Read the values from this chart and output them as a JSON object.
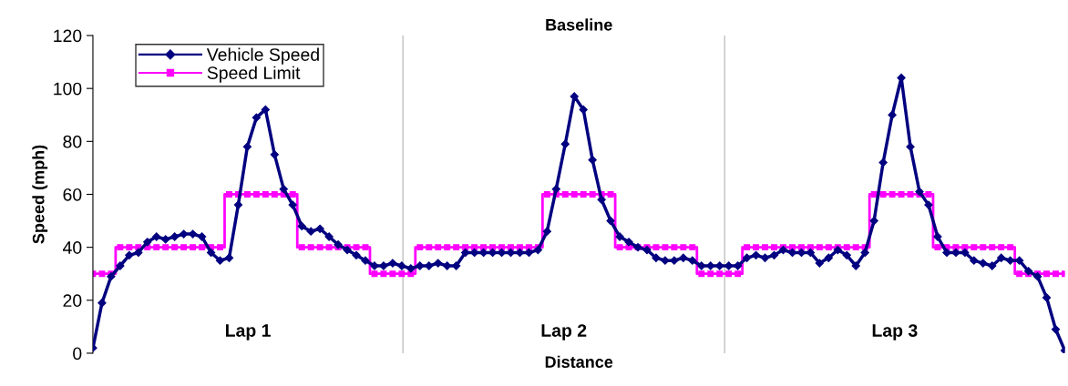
{
  "chart_data": {
    "type": "line",
    "title": "Baseline",
    "xlabel": "Distance",
    "ylabel": "Speed (mph)",
    "categories": [
      null,
      null,
      null,
      null,
      null,
      null,
      null,
      null,
      null,
      null,
      null,
      null,
      null,
      null,
      null,
      null,
      null,
      null,
      null,
      null,
      null,
      null,
      null,
      null,
      null,
      null,
      null,
      null,
      null,
      null,
      null,
      null,
      null,
      null,
      null,
      null,
      null,
      null,
      null,
      null,
      null,
      null,
      null,
      null,
      null,
      null,
      null,
      null,
      null,
      null,
      null,
      null,
      null,
      null,
      null,
      null,
      null,
      null,
      null,
      null,
      null,
      null,
      null,
      null,
      null,
      null,
      null,
      null,
      null,
      null,
      null,
      null,
      null,
      null,
      null,
      null,
      null,
      null,
      null,
      null,
      null,
      null,
      null,
      null,
      null,
      null,
      null,
      null,
      null,
      null,
      null,
      null,
      null,
      null,
      null,
      null,
      null,
      null,
      null,
      null,
      null,
      null,
      null,
      null,
      null,
      null,
      null,
      null
    ],
    "series": [
      {
        "name": "Vehicle Speed",
        "color": "#000080",
        "marker": "diamond",
        "values": [
          2,
          19,
          29,
          33,
          37,
          38,
          42,
          44,
          43,
          44,
          45,
          45,
          44,
          38,
          35,
          36,
          56,
          78,
          89,
          92,
          75,
          62,
          56,
          48,
          46,
          47,
          44,
          41,
          39,
          37,
          35,
          33,
          33,
          34,
          33,
          32,
          33,
          33,
          34,
          33,
          33,
          38,
          38,
          38,
          38,
          38,
          38,
          38,
          38,
          39,
          46,
          62,
          79,
          97,
          92,
          73,
          58,
          50,
          44,
          42,
          40,
          39,
          36,
          35,
          35,
          36,
          35,
          33,
          33,
          33,
          33,
          33,
          36,
          37,
          36,
          37,
          39,
          38,
          38,
          38,
          34,
          36,
          39,
          37,
          33,
          38,
          50,
          72,
          90,
          104,
          78,
          61,
          56,
          44,
          38,
          38,
          38,
          35,
          34,
          33,
          36,
          35,
          35,
          31,
          29,
          21,
          9,
          1
        ]
      },
      {
        "name": "Speed Limit",
        "color": "#ff00ff",
        "type": "step",
        "marker": "square",
        "values": [
          30,
          30,
          30,
          40,
          40,
          40,
          40,
          40,
          40,
          40,
          40,
          40,
          40,
          40,
          40,
          60,
          60,
          60,
          60,
          60,
          60,
          60,
          60,
          40,
          40,
          40,
          40,
          40,
          40,
          40,
          40,
          30,
          30,
          30,
          30,
          30,
          40,
          40,
          40,
          40,
          40,
          40,
          40,
          40,
          40,
          40,
          40,
          40,
          40,
          40,
          60,
          60,
          60,
          60,
          60,
          60,
          60,
          60,
          40,
          40,
          40,
          40,
          40,
          40,
          40,
          40,
          40,
          30,
          30,
          30,
          30,
          30,
          40,
          40,
          40,
          40,
          40,
          40,
          40,
          40,
          40,
          40,
          40,
          40,
          40,
          40,
          60,
          60,
          60,
          60,
          60,
          60,
          60,
          40,
          40,
          40,
          40,
          40,
          40,
          40,
          40,
          40,
          30,
          30,
          30,
          30,
          30,
          30
        ]
      }
    ],
    "ylim": [
      0,
      120
    ],
    "yticks": [
      0,
      20,
      40,
      60,
      80,
      100,
      120
    ],
    "annotations": [
      "Lap 1",
      "Lap 2",
      "Lap 3"
    ],
    "legend": "top left",
    "grid": false,
    "tick_labels": "y"
  }
}
